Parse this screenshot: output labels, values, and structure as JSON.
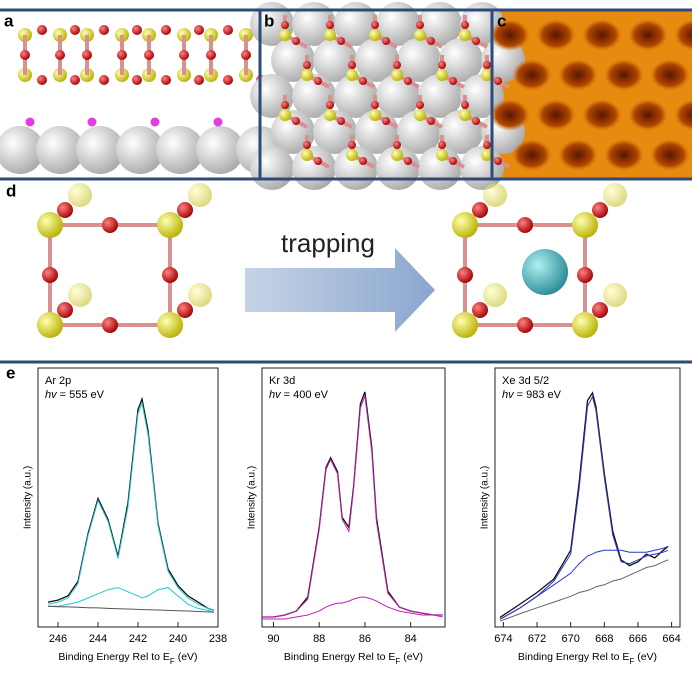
{
  "panels": {
    "a": "a",
    "b": "b",
    "c": "c",
    "d": "d",
    "e": "e"
  },
  "arrow_label": "trapping",
  "chart_data": [
    {
      "type": "line",
      "title": "Ar 2p",
      "annotation": {
        "symbol": "hv",
        "text": "= 555 eV"
      },
      "ylabel": "Intensity (a.u.)",
      "xlabel": [
        "Binding Energy Rel to E",
        "F",
        " (eV)"
      ],
      "x": [
        246.5,
        246,
        245.5,
        245,
        244.5,
        244,
        243.5,
        243,
        242.5,
        242,
        241.8,
        241.5,
        241,
        240.5,
        240,
        239.5,
        239,
        238.5,
        238.2
      ],
      "xlim": [
        247,
        238
      ],
      "xticks": [
        246,
        244,
        242,
        240,
        238
      ],
      "ylim": [
        0,
        125
      ],
      "series": [
        {
          "color": "#111111",
          "values": [
            12,
            13,
            15,
            22,
            45,
            62,
            52,
            34,
            60,
            105,
            110,
            95,
            50,
            28,
            20,
            15,
            12,
            9,
            8
          ]
        },
        {
          "color": "#22c8d4",
          "values": [
            11,
            12,
            14,
            21,
            44,
            61,
            51,
            33,
            58,
            103,
            108,
            93,
            49,
            27,
            19,
            14,
            11,
            9,
            8
          ]
        },
        {
          "color": "#22c8d4",
          "values": [
            10,
            10,
            11,
            12,
            14,
            16,
            18,
            19,
            17,
            15,
            14,
            15,
            18,
            19,
            15,
            11,
            9,
            8,
            7
          ]
        },
        {
          "color": "#555555",
          "values": [
            10,
            9.8,
            9.7,
            9.5,
            9.3,
            9.2,
            9,
            8.8,
            8.7,
            8.5,
            8.4,
            8.3,
            8.2,
            8,
            7.8,
            7.7,
            7.5,
            7.3,
            7.2
          ]
        }
      ]
    },
    {
      "type": "line",
      "title": "Kr 3d",
      "annotation": {
        "symbol": "hv",
        "text": "= 400 eV"
      },
      "ylabel": "Intensity (a.u.)",
      "xlabel": [
        "Binding Energy Rel to E",
        "F",
        " (eV)"
      ],
      "x": [
        90.5,
        90,
        89.5,
        89,
        88.5,
        88,
        87.7,
        87.5,
        87.2,
        87,
        86.7,
        86.5,
        86.2,
        86,
        85.7,
        85.5,
        85,
        84.5,
        84,
        83.5,
        83,
        82.6
      ],
      "xlim": [
        90.5,
        82.5
      ],
      "xticks": [
        90,
        88,
        86,
        84
      ],
      "ylim": [
        0,
        130
      ],
      "series": [
        {
          "color": "#111111",
          "values": [
            5,
            5,
            6,
            8,
            15,
            50,
            80,
            85,
            78,
            55,
            50,
            70,
            112,
            118,
            90,
            55,
            18,
            10,
            8,
            7,
            6,
            6
          ]
        },
        {
          "color": "#c020b0",
          "values": [
            5,
            5,
            6,
            8,
            14,
            49,
            79,
            84,
            77,
            54,
            48,
            69,
            110,
            116,
            88,
            53,
            17,
            10,
            8,
            7,
            6,
            6
          ]
        },
        {
          "color": "#c020b0",
          "values": [
            4,
            4,
            4,
            5,
            6,
            8,
            10,
            11,
            12,
            12,
            13,
            14,
            15,
            15,
            14,
            13,
            10,
            8,
            7,
            6,
            6,
            5
          ]
        }
      ]
    },
    {
      "type": "line",
      "title": "Xe 3d 5/2",
      "annotation": {
        "symbol": "hv",
        "text": "= 983 eV"
      },
      "ylabel": "Intensity (a.u.)",
      "xlabel": [
        "Binding Energy Rel to E",
        "F",
        " (eV)"
      ],
      "x": [
        674.2,
        673,
        672,
        671,
        670,
        669.5,
        669,
        668.7,
        668.5,
        668,
        667.5,
        667,
        666.5,
        666,
        665.5,
        665,
        664.5,
        664.2
      ],
      "xlim": [
        674.5,
        663.5
      ],
      "xticks": [
        674,
        672,
        670,
        668,
        666,
        664
      ],
      "ylim": [
        0,
        135
      ],
      "series": [
        {
          "color": "#111111",
          "values": [
            5,
            12,
            18,
            25,
            40,
            75,
            118,
            122,
            115,
            80,
            50,
            35,
            32,
            34,
            38,
            36,
            40,
            42
          ]
        },
        {
          "color": "#2a36c4",
          "values": [
            4,
            10,
            16,
            24,
            38,
            72,
            115,
            120,
            113,
            78,
            48,
            34,
            33,
            35,
            37,
            38,
            39,
            40
          ]
        },
        {
          "color": "#2a36c4",
          "values": [
            4,
            10,
            16,
            22,
            28,
            33,
            37,
            38,
            39,
            40,
            40,
            40,
            39,
            39,
            39,
            40,
            41,
            42
          ]
        },
        {
          "color": "#666666",
          "values": [
            3,
            7,
            10,
            13,
            16,
            18,
            19,
            20,
            21,
            22,
            24,
            25,
            27,
            29,
            31,
            32,
            34,
            35
          ]
        }
      ]
    }
  ]
}
